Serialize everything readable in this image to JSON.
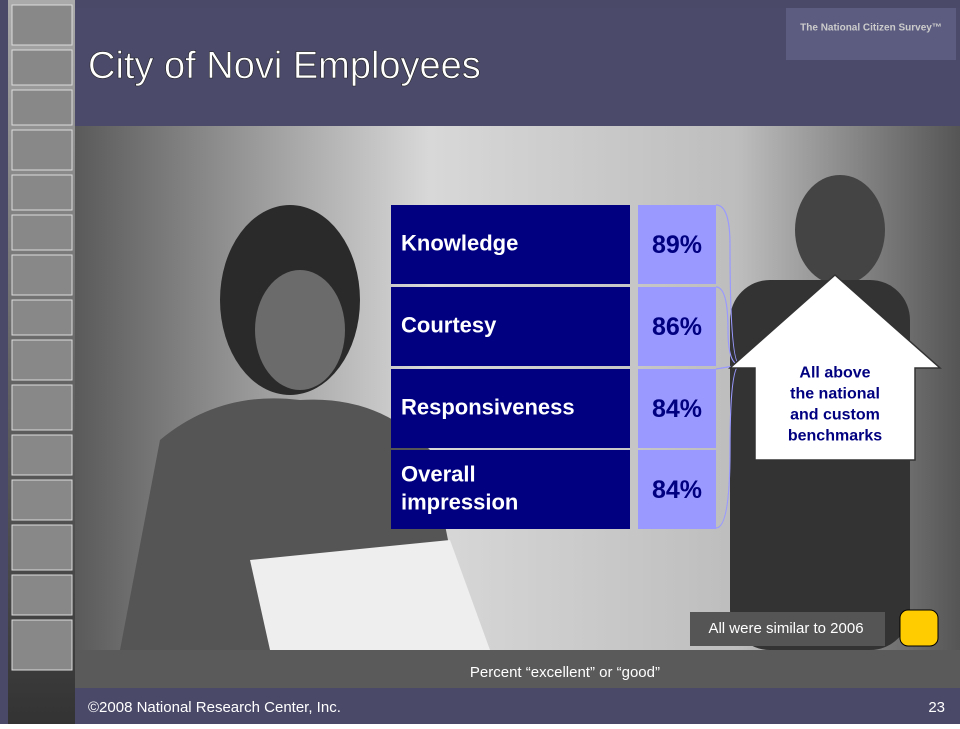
{
  "header": {
    "title": "City of Novi Employees",
    "logo": "The National Citizen Survey™"
  },
  "table": {
    "rows": [
      {
        "label": "Knowledge",
        "value": "89%"
      },
      {
        "label": "Courtesy",
        "value": "86%"
      },
      {
        "label": "Responsiveness",
        "value": "84%"
      },
      {
        "label": "Overall impression",
        "value": "84%"
      }
    ]
  },
  "callout": "All above the national and custom benchmarks",
  "note": "All were similar to 2006",
  "caption": "Percent “excellent” or “good”",
  "footer": {
    "copyright": "©2008 National Research Center, Inc.",
    "page": "23"
  }
}
